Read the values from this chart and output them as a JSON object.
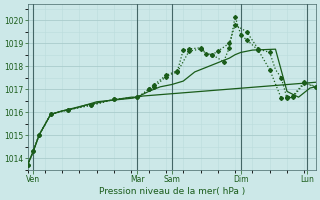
{
  "bg_color": "#cce8e8",
  "grid_color_major": "#aacccc",
  "grid_color_minor": "#bbdddd",
  "line_color": "#1a5c1a",
  "xlabel": "Pression niveau de la mer( hPa )",
  "ylim": [
    1013.5,
    1020.7
  ],
  "xlim": [
    0,
    100
  ],
  "yticks": [
    1014,
    1015,
    1016,
    1017,
    1018,
    1019,
    1020
  ],
  "day_labels": [
    "Ven",
    "Mar",
    "Sam",
    "Dim",
    "Lun"
  ],
  "day_positions": [
    2,
    38,
    50,
    74,
    97
  ],
  "series": [
    {
      "x": [
        0,
        2,
        4,
        8,
        12,
        16,
        20,
        24,
        28,
        32,
        36,
        38,
        40,
        42,
        44,
        46,
        48,
        50,
        52,
        54,
        56,
        58,
        60,
        62,
        64,
        66,
        68,
        70,
        72,
        74,
        76,
        78,
        80,
        82,
        84,
        86,
        88,
        90,
        92,
        94,
        96,
        98,
        100
      ],
      "y": [
        1013.7,
        1014.3,
        1015.0,
        1015.9,
        1016.05,
        1016.15,
        1016.3,
        1016.45,
        1016.5,
        1016.55,
        1016.6,
        1016.65,
        1016.7,
        1016.72,
        1016.74,
        1016.76,
        1016.78,
        1016.8,
        1016.82,
        1016.84,
        1016.86,
        1016.88,
        1016.9,
        1016.92,
        1016.94,
        1016.96,
        1016.98,
        1017.0,
        1017.02,
        1017.04,
        1017.06,
        1017.08,
        1017.1,
        1017.12,
        1017.14,
        1017.16,
        1017.18,
        1017.2,
        1017.22,
        1017.24,
        1017.26,
        1017.28,
        1017.3
      ],
      "style": "solid",
      "markers": false
    },
    {
      "x": [
        0,
        2,
        4,
        8,
        12,
        20,
        28,
        36,
        38,
        42,
        46,
        50,
        54,
        56,
        58,
        60,
        62,
        64,
        66,
        68,
        70,
        72,
        74,
        76,
        78,
        82,
        86,
        90,
        94,
        98,
        100
      ],
      "y": [
        1013.7,
        1014.3,
        1015.0,
        1015.9,
        1016.05,
        1016.3,
        1016.5,
        1016.65,
        1016.65,
        1016.9,
        1017.1,
        1017.2,
        1017.35,
        1017.55,
        1017.75,
        1017.85,
        1017.95,
        1018.05,
        1018.15,
        1018.25,
        1018.35,
        1018.5,
        1018.6,
        1018.65,
        1018.7,
        1018.72,
        1018.74,
        1016.9,
        1016.65,
        1017.05,
        1017.1
      ],
      "style": "solid",
      "markers": false
    },
    {
      "x": [
        0,
        2,
        4,
        8,
        14,
        22,
        30,
        38,
        40,
        42,
        44,
        48,
        50,
        52,
        54,
        56,
        60,
        62,
        64,
        66,
        70,
        72,
        76,
        80,
        84,
        86,
        88,
        90,
        92,
        96,
        100
      ],
      "y": [
        1013.7,
        1014.3,
        1015.0,
        1015.9,
        1016.1,
        1016.3,
        1016.55,
        1016.65,
        1016.8,
        1017.0,
        1017.2,
        1017.6,
        1017.7,
        1017.8,
        1018.7,
        1018.75,
        1018.8,
        1018.55,
        1018.5,
        1018.65,
        1019.0,
        1019.8,
        1019.5,
        1018.75,
        1018.6,
        1017.85,
        1017.5,
        1016.6,
        1016.65,
        1017.25,
        1017.1
      ],
      "style": "dotted",
      "markers": true,
      "marker_x": [
        0,
        2,
        4,
        8,
        14,
        22,
        30,
        38,
        42,
        44,
        48,
        52,
        54,
        56,
        60,
        64,
        66,
        70,
        72,
        76,
        80,
        84,
        88,
        90,
        92,
        96,
        100
      ],
      "marker_y": [
        1013.7,
        1014.3,
        1015.0,
        1015.9,
        1016.1,
        1016.3,
        1016.55,
        1016.65,
        1017.0,
        1017.2,
        1017.6,
        1017.8,
        1018.7,
        1018.75,
        1018.8,
        1018.5,
        1018.65,
        1019.0,
        1019.8,
        1019.5,
        1018.75,
        1018.6,
        1017.5,
        1016.6,
        1016.65,
        1017.25,
        1017.1
      ]
    },
    {
      "x": [
        0,
        2,
        4,
        8,
        14,
        22,
        30,
        38,
        40,
        42,
        44,
        48,
        50,
        52,
        56,
        58,
        60,
        62,
        64,
        66,
        68,
        70,
        72,
        74,
        76,
        80,
        84,
        88,
        90,
        92,
        96,
        100
      ],
      "y": [
        1013.7,
        1014.3,
        1015.0,
        1015.9,
        1016.1,
        1016.3,
        1016.55,
        1016.65,
        1016.8,
        1017.0,
        1017.1,
        1017.55,
        1017.65,
        1017.75,
        1018.65,
        1018.7,
        1018.75,
        1018.55,
        1018.5,
        1018.35,
        1018.2,
        1018.8,
        1020.15,
        1019.35,
        1019.15,
        1018.7,
        1017.85,
        1016.6,
        1016.65,
        1016.7,
        1017.3,
        1017.1
      ],
      "style": "dotted",
      "markers": true,
      "marker_x": [
        0,
        2,
        4,
        8,
        14,
        22,
        30,
        38,
        42,
        44,
        48,
        52,
        56,
        60,
        62,
        64,
        68,
        70,
        72,
        74,
        76,
        80,
        84,
        88,
        90,
        92,
        96,
        100
      ],
      "marker_y": [
        1013.7,
        1014.3,
        1015.0,
        1015.9,
        1016.1,
        1016.3,
        1016.55,
        1016.65,
        1017.0,
        1017.1,
        1017.55,
        1017.75,
        1018.65,
        1018.75,
        1018.55,
        1018.5,
        1018.2,
        1018.8,
        1020.15,
        1019.35,
        1019.15,
        1018.7,
        1017.85,
        1016.6,
        1016.65,
        1016.7,
        1017.3,
        1017.1
      ]
    }
  ]
}
